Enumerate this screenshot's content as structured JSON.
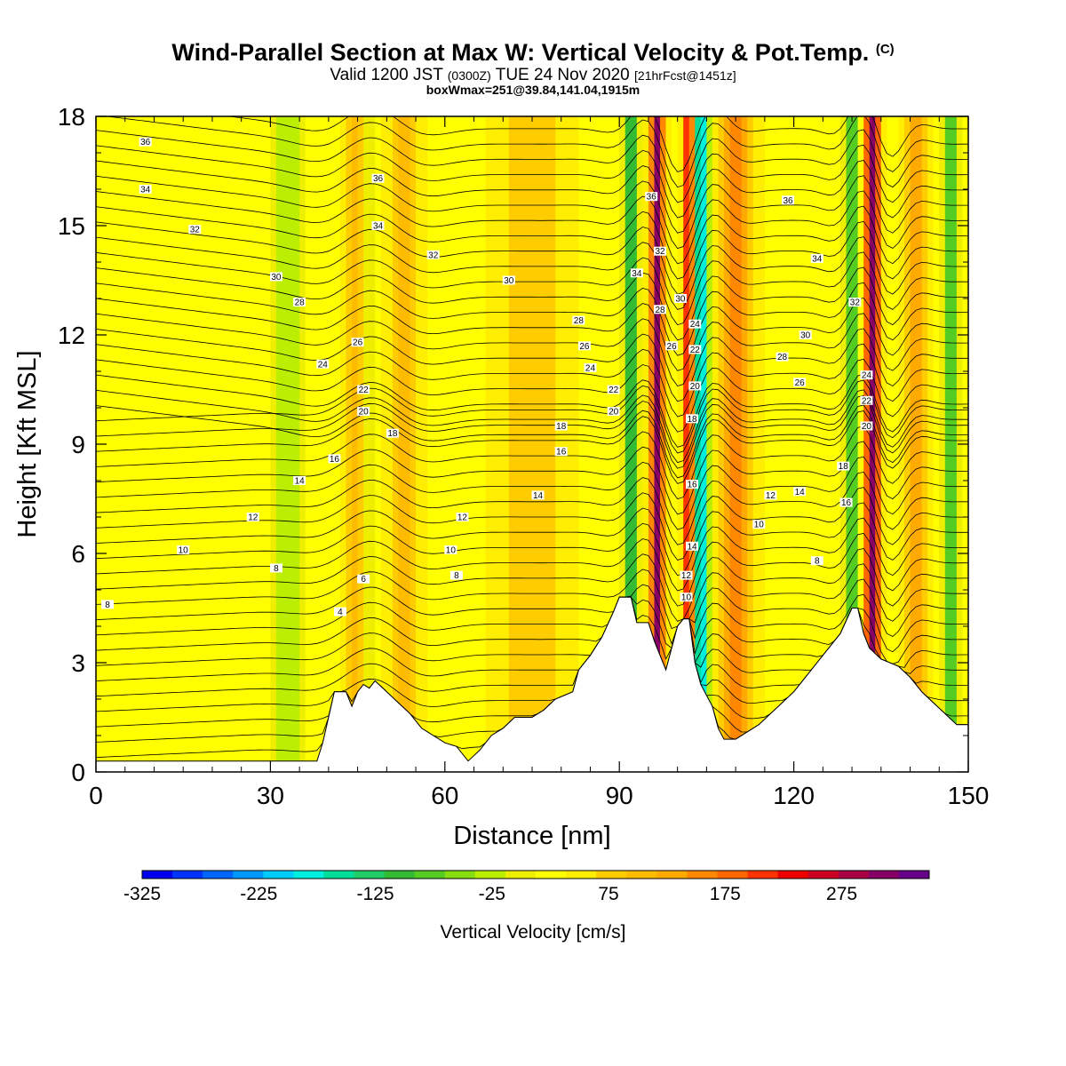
{
  "header": {
    "title": "Wind-Parallel Section at Max W: Vertical Velocity & Pot.Temp.",
    "copyright": "(C)",
    "subtitle_main": "Valid 1200 JST",
    "subtitle_z": "(0300Z)",
    "subtitle_date": "TUE 24 Nov 2020",
    "subtitle_fcst": "[21hrFcst@1451z]",
    "box_info": "boxWmax=251@39.84,141.04,1915m"
  },
  "chart_data": {
    "type": "heatmap",
    "xlabel": "Distance [nm]",
    "ylabel": "Height [Kft MSL]",
    "xlim": [
      0,
      150
    ],
    "ylim": [
      0,
      18
    ],
    "x_ticks": [
      0,
      30,
      60,
      90,
      120,
      150
    ],
    "y_ticks": [
      0,
      3,
      6,
      9,
      12,
      15,
      18
    ],
    "colorbar": {
      "label": "Vertical Velocity [cm/s]",
      "tick_labels": [
        "-325",
        "-225",
        "-125",
        "-25",
        "75",
        "175",
        "275"
      ],
      "tick_values": [
        -325,
        -225,
        -125,
        -25,
        75,
        175,
        275
      ],
      "range": [
        -325,
        350
      ],
      "colors": [
        "#0000ee",
        "#0033ff",
        "#0066ff",
        "#0099ff",
        "#00ccff",
        "#00eedd",
        "#00dd99",
        "#22cc66",
        "#33bb33",
        "#55cc22",
        "#88dd11",
        "#bbee00",
        "#eeee00",
        "#ffff00",
        "#ffee00",
        "#ffcc00",
        "#ffbb00",
        "#ffaa00",
        "#ff8800",
        "#ff6600",
        "#ff3300",
        "#ee0000",
        "#cc0022",
        "#aa0044",
        "#880066",
        "#660088"
      ]
    },
    "terrain_profile": [
      [
        0,
        0.3
      ],
      [
        38,
        0.3
      ],
      [
        39,
        0.8
      ],
      [
        40,
        1.5
      ],
      [
        41,
        2.2
      ],
      [
        43,
        2.2
      ],
      [
        44,
        1.8
      ],
      [
        45,
        2.2
      ],
      [
        46,
        2.4
      ],
      [
        47,
        2.3
      ],
      [
        48,
        2.5
      ],
      [
        50,
        2.2
      ],
      [
        52,
        1.9
      ],
      [
        54,
        1.6
      ],
      [
        56,
        1.2
      ],
      [
        58,
        1.0
      ],
      [
        60,
        0.8
      ],
      [
        62,
        0.7
      ],
      [
        64,
        0.3
      ],
      [
        66,
        0.6
      ],
      [
        68,
        1.0
      ],
      [
        70,
        1.2
      ],
      [
        72,
        1.5
      ],
      [
        75,
        1.5
      ],
      [
        77,
        1.7
      ],
      [
        79,
        2.0
      ],
      [
        82,
        2.2
      ],
      [
        83,
        2.8
      ],
      [
        85,
        3.2
      ],
      [
        87,
        3.7
      ],
      [
        89,
        4.4
      ],
      [
        90,
        4.8
      ],
      [
        92,
        4.8
      ],
      [
        93,
        4.1
      ],
      [
        95,
        4.1
      ],
      [
        96,
        3.6
      ],
      [
        97,
        3.2
      ],
      [
        98,
        2.8
      ],
      [
        99,
        3.4
      ],
      [
        100,
        4.0
      ],
      [
        101,
        4.2
      ],
      [
        102,
        4.2
      ],
      [
        103,
        3.0
      ],
      [
        104,
        2.4
      ],
      [
        106,
        1.8
      ],
      [
        107,
        1.2
      ],
      [
        108,
        0.9
      ],
      [
        110,
        0.9
      ],
      [
        112,
        1.1
      ],
      [
        114,
        1.3
      ],
      [
        116,
        1.6
      ],
      [
        118,
        1.9
      ],
      [
        120,
        2.2
      ],
      [
        122,
        2.6
      ],
      [
        124,
        3.0
      ],
      [
        126,
        3.4
      ],
      [
        128,
        3.8
      ],
      [
        130,
        4.5
      ],
      [
        131,
        4.5
      ],
      [
        132,
        3.8
      ],
      [
        133,
        3.4
      ],
      [
        135,
        3.1
      ],
      [
        138,
        2.9
      ],
      [
        140,
        2.6
      ],
      [
        142,
        2.2
      ],
      [
        144,
        1.9
      ],
      [
        146,
        1.6
      ],
      [
        148,
        1.3
      ],
      [
        150,
        1.3
      ]
    ],
    "contour_labels": [
      {
        "x": 8.5,
        "y": 17.3,
        "text": "36"
      },
      {
        "x": 8.5,
        "y": 16.0,
        "text": "34"
      },
      {
        "x": 17,
        "y": 14.9,
        "text": "32"
      },
      {
        "x": 31,
        "y": 13.6,
        "text": "30"
      },
      {
        "x": 35,
        "y": 12.9,
        "text": "28"
      },
      {
        "x": 39,
        "y": 11.2,
        "text": "24"
      },
      {
        "x": 45,
        "y": 11.8,
        "text": "26"
      },
      {
        "x": 46,
        "y": 10.5,
        "text": "22"
      },
      {
        "x": 46,
        "y": 9.9,
        "text": "20"
      },
      {
        "x": 51,
        "y": 9.3,
        "text": "18"
      },
      {
        "x": 41,
        "y": 8.6,
        "text": "16"
      },
      {
        "x": 35,
        "y": 8.0,
        "text": "14"
      },
      {
        "x": 27,
        "y": 7.0,
        "text": "12"
      },
      {
        "x": 15,
        "y": 6.1,
        "text": "10"
      },
      {
        "x": 31,
        "y": 5.6,
        "text": "8"
      },
      {
        "x": 2,
        "y": 4.6,
        "text": "8"
      },
      {
        "x": 46,
        "y": 5.3,
        "text": "6"
      },
      {
        "x": 42,
        "y": 4.4,
        "text": "4"
      },
      {
        "x": 48.5,
        "y": 16.3,
        "text": "36"
      },
      {
        "x": 48.5,
        "y": 15.0,
        "text": "34"
      },
      {
        "x": 58,
        "y": 14.2,
        "text": "32"
      },
      {
        "x": 71,
        "y": 13.5,
        "text": "30"
      },
      {
        "x": 83,
        "y": 12.4,
        "text": "28"
      },
      {
        "x": 84,
        "y": 11.7,
        "text": "26"
      },
      {
        "x": 85,
        "y": 11.1,
        "text": "24"
      },
      {
        "x": 89,
        "y": 10.5,
        "text": "22"
      },
      {
        "x": 89,
        "y": 9.9,
        "text": "20"
      },
      {
        "x": 80,
        "y": 9.5,
        "text": "18"
      },
      {
        "x": 80,
        "y": 8.8,
        "text": "16"
      },
      {
        "x": 76,
        "y": 7.6,
        "text": "14"
      },
      {
        "x": 63,
        "y": 7.0,
        "text": "12"
      },
      {
        "x": 61,
        "y": 6.1,
        "text": "10"
      },
      {
        "x": 62,
        "y": 5.4,
        "text": "8"
      },
      {
        "x": 95.5,
        "y": 15.8,
        "text": "36"
      },
      {
        "x": 97,
        "y": 14.3,
        "text": "32"
      },
      {
        "x": 93,
        "y": 13.7,
        "text": "34"
      },
      {
        "x": 97,
        "y": 12.7,
        "text": "28"
      },
      {
        "x": 100.5,
        "y": 13.0,
        "text": "30"
      },
      {
        "x": 103,
        "y": 12.3,
        "text": "24"
      },
      {
        "x": 99,
        "y": 11.7,
        "text": "26"
      },
      {
        "x": 103,
        "y": 11.6,
        "text": "22"
      },
      {
        "x": 103,
        "y": 10.6,
        "text": "20"
      },
      {
        "x": 102.5,
        "y": 9.7,
        "text": "18"
      },
      {
        "x": 102.5,
        "y": 7.9,
        "text": "16"
      },
      {
        "x": 102.5,
        "y": 6.2,
        "text": "14"
      },
      {
        "x": 101.5,
        "y": 5.4,
        "text": "12"
      },
      {
        "x": 101.5,
        "y": 4.8,
        "text": "10"
      },
      {
        "x": 119,
        "y": 15.7,
        "text": "36"
      },
      {
        "x": 124,
        "y": 14.1,
        "text": "34"
      },
      {
        "x": 130.5,
        "y": 12.9,
        "text": "32"
      },
      {
        "x": 122,
        "y": 12.0,
        "text": "30"
      },
      {
        "x": 118,
        "y": 11.4,
        "text": "28"
      },
      {
        "x": 121,
        "y": 10.7,
        "text": "26"
      },
      {
        "x": 132.5,
        "y": 10.9,
        "text": "24"
      },
      {
        "x": 132.5,
        "y": 10.2,
        "text": "22"
      },
      {
        "x": 132.5,
        "y": 9.5,
        "text": "20"
      },
      {
        "x": 128.5,
        "y": 8.4,
        "text": "18"
      },
      {
        "x": 129,
        "y": 7.4,
        "text": "16"
      },
      {
        "x": 121,
        "y": 7.7,
        "text": "14"
      },
      {
        "x": 116,
        "y": 7.6,
        "text": "12"
      },
      {
        "x": 114,
        "y": 6.8,
        "text": "10"
      },
      {
        "x": 124,
        "y": 5.8,
        "text": "8"
      }
    ]
  }
}
